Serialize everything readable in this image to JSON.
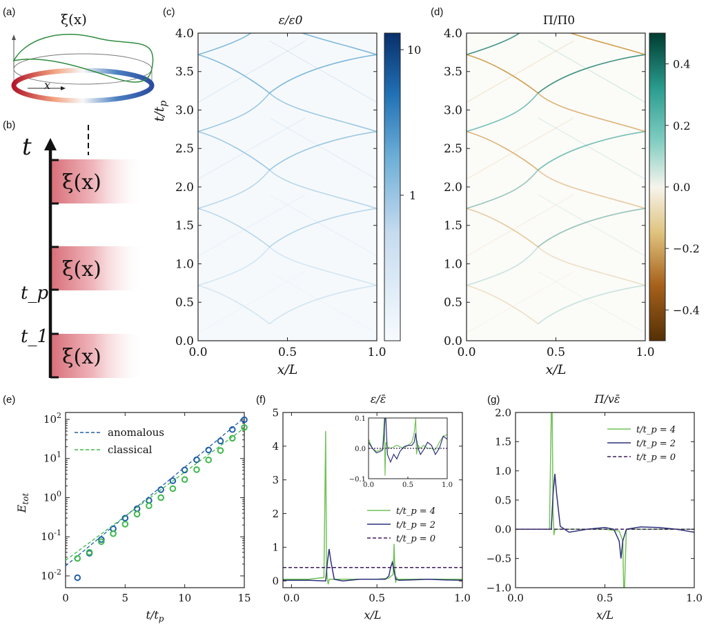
{
  "panels": {
    "a": {
      "letter": "(a)",
      "title": "ξ(x)",
      "axis_label": "x"
    },
    "b": {
      "letter": "(b)",
      "axis_label": "t",
      "labels": [
        "ξ(x)",
        "ξ(x)",
        "ξ(x)"
      ],
      "tick_labels": [
        "t_p",
        "t_1"
      ]
    },
    "c": {
      "letter": "(c)"
    },
    "d": {
      "letter": "(d)"
    },
    "e": {
      "letter": "(e)"
    },
    "f": {
      "letter": "(f)"
    },
    "g": {
      "letter": "(g)"
    }
  },
  "chart_data": [
    {
      "id": "c",
      "type": "heatmap",
      "title": "ε/ε0",
      "xlabel": "x/L",
      "ylabel": "t/t_p",
      "xlim": [
        0,
        1
      ],
      "ylim": [
        0,
        4
      ],
      "xticks": [
        "0.0",
        "0.5",
        "1.0"
      ],
      "yticks": [
        "0.0",
        "0.5",
        "1.0",
        "1.5",
        "2.0",
        "2.5",
        "3.0",
        "3.5",
        "4.0"
      ],
      "colorbar": {
        "ticks": [
          "1",
          "10"
        ],
        "scale": "log",
        "colors": [
          "#f7fbff",
          "#08306b"
        ]
      }
    },
    {
      "id": "d",
      "type": "heatmap",
      "title": "Π/Π0",
      "xlabel": "x/L",
      "xlim": [
        0,
        1
      ],
      "ylim": [
        0,
        4
      ],
      "xticks": [
        "0.0",
        "0.5",
        "1.0"
      ],
      "yticks": [
        "0.0",
        "0.5",
        "1.0",
        "1.5",
        "2.0",
        "2.5",
        "3.0",
        "3.5",
        "4.0"
      ],
      "colorbar": {
        "ticks": [
          "0.4",
          "0.2",
          "0.0",
          "−0.2",
          "−0.4"
        ],
        "range": [
          -0.5,
          0.5
        ],
        "colors": [
          "#543005",
          "#f5f5f5",
          "#003c30"
        ]
      }
    },
    {
      "id": "e",
      "type": "scatter",
      "xlabel": "t/t_p",
      "ylabel": "E_tot",
      "xlim": [
        0,
        15
      ],
      "ylim": [
        0.005,
        150
      ],
      "yscale": "log",
      "xticks": [
        "0",
        "5",
        "10",
        "15"
      ],
      "yticks": [
        "10^-2",
        "10^-1",
        "10^0",
        "10^1",
        "10^2"
      ],
      "legend": [
        "anomalous",
        "classical"
      ],
      "legend_position": "top-left",
      "series": [
        {
          "name": "anomalous",
          "color": "#1f5fa8",
          "x": [
            1,
            2,
            3,
            4,
            5,
            6,
            7,
            8,
            9,
            10,
            11,
            12,
            13,
            14,
            15
          ],
          "y": [
            0.009,
            0.038,
            0.085,
            0.16,
            0.3,
            0.52,
            0.85,
            1.6,
            2.7,
            5.1,
            9.3,
            16.5,
            28,
            55,
            98
          ],
          "fit": {
            "x": [
              0,
              15
            ],
            "y": [
              0.018,
              110
            ]
          }
        },
        {
          "name": "classical",
          "color": "#3cb84a",
          "x": [
            1,
            2,
            3,
            4,
            5,
            6,
            7,
            8,
            9,
            10,
            11,
            12,
            13,
            14,
            15
          ],
          "y": [
            0.028,
            0.04,
            0.075,
            0.12,
            0.21,
            0.38,
            0.62,
            1.0,
            1.7,
            2.9,
            5.2,
            9.2,
            16,
            33,
            62
          ],
          "fit": {
            "x": [
              0,
              15
            ],
            "y": [
              0.025,
              60
            ]
          }
        }
      ]
    },
    {
      "id": "f",
      "type": "line",
      "title": "ε/ε̄",
      "xlabel": "x/L",
      "xlim": [
        -0.05,
        1
      ],
      "ylim": [
        -0.2,
        5
      ],
      "xticks": [
        "0.0",
        "0.5",
        "1.0"
      ],
      "yticks": [
        "0",
        "1",
        "2",
        "3",
        "4",
        "5"
      ],
      "legend": [
        "t/t_p = 4",
        "t/t_p = 2",
        "t/t_p = 0"
      ],
      "legend_position": "lower-right",
      "series": [
        {
          "name": "t/t_p = 4",
          "color": "#72c258",
          "x": [
            -0.05,
            0.1,
            0.19,
            0.2,
            0.205,
            0.21,
            0.215,
            0.22,
            0.23,
            0.3,
            0.5,
            0.57,
            0.595,
            0.6,
            0.605,
            0.61,
            0.615,
            0.62,
            0.7,
            0.9,
            1.0
          ],
          "y": [
            0.05,
            0.05,
            0.1,
            4.45,
            0.4,
            0.05,
            -0.1,
            0.05,
            0.05,
            0.05,
            0.05,
            0.08,
            0.2,
            1.1,
            0.3,
            -0.05,
            0.1,
            0.05,
            0.05,
            0.05,
            0.05
          ]
        },
        {
          "name": "t/t_p = 2",
          "color": "#2b2f7a",
          "x": [
            -0.05,
            0.1,
            0.2,
            0.21,
            0.22,
            0.23,
            0.25,
            0.3,
            0.4,
            0.5,
            0.55,
            0.57,
            0.58,
            0.59,
            0.6,
            0.61,
            0.63,
            0.7,
            0.8,
            0.9,
            1.0
          ],
          "y": [
            0.02,
            0.02,
            0.0,
            0.55,
            0.95,
            0.6,
            0.05,
            0.0,
            0.05,
            0.05,
            0.05,
            0.15,
            0.4,
            0.55,
            0.3,
            0.05,
            0.02,
            0.03,
            0.05,
            0.03,
            0.02
          ]
        },
        {
          "name": "t/t_p = 0",
          "color": "#3b1a5a",
          "dashed": true,
          "x": [
            -0.05,
            1.0
          ],
          "y": [
            0.4,
            0.4
          ]
        }
      ],
      "inset": {
        "xlim": [
          0,
          1
        ],
        "ylim": [
          -0.1,
          0.1
        ],
        "xticks": [
          "0.0",
          "0.5",
          "1.0"
        ],
        "yticks": [
          "−0.1",
          "0.0",
          "0.1"
        ],
        "series": [
          {
            "name": "t/t_p = 4",
            "color": "#72c258",
            "x": [
              0,
              0.05,
              0.1,
              0.15,
              0.18,
              0.2,
              0.21,
              0.22,
              0.24,
              0.28,
              0.32,
              0.36,
              0.4,
              0.45,
              0.5,
              0.55,
              0.58,
              0.6,
              0.61,
              0.63,
              0.66,
              0.7,
              0.75,
              0.8,
              0.85,
              0.9,
              0.95,
              1.0
            ],
            "y": [
              0.03,
              0.0,
              -0.01,
              -0.005,
              0.0,
              0.1,
              -0.09,
              0.02,
              0.005,
              0.0,
              0.005,
              0.01,
              0.005,
              0.0,
              0.01,
              0.02,
              0.05,
              0.1,
              -0.02,
              0.01,
              0.0,
              0.01,
              0.0,
              0.0,
              -0.005,
              0.02,
              0.04,
              0.045
            ]
          },
          {
            "name": "t/t_p = 2",
            "color": "#2b2f7a",
            "x": [
              0,
              0.05,
              0.1,
              0.15,
              0.18,
              0.2,
              0.21,
              0.22,
              0.24,
              0.28,
              0.32,
              0.36,
              0.4,
              0.45,
              0.5,
              0.55,
              0.58,
              0.6,
              0.61,
              0.63,
              0.66,
              0.7,
              0.75,
              0.8,
              0.85,
              0.9,
              0.95,
              1.0
            ],
            "y": [
              0.02,
              0.0,
              -0.015,
              -0.01,
              -0.005,
              0.05,
              0.1,
              0.1,
              -0.02,
              -0.045,
              -0.02,
              -0.035,
              -0.01,
              0.005,
              0.01,
              0.01,
              0.02,
              0.05,
              0.03,
              0.0,
              -0.02,
              -0.005,
              0.02,
              0.01,
              -0.02,
              0.0,
              0.04,
              0.03
            ]
          },
          {
            "name": "t/t_p = 0",
            "color": "#3b1a5a",
            "dashed": true,
            "x": [
              0,
              1
            ],
            "y": [
              0,
              0
            ]
          }
        ]
      }
    },
    {
      "id": "g",
      "type": "line",
      "title": "Π/vε̄",
      "xlabel": "x/L",
      "xlim": [
        0,
        1
      ],
      "ylim": [
        -1,
        2
      ],
      "xticks": [
        "0.0",
        "0.5",
        "1.0"
      ],
      "yticks": [
        "−1.0",
        "−0.5",
        "0.0",
        "0.5",
        "1.0",
        "1.5",
        "2.0"
      ],
      "legend": [
        "t/t_p = 4",
        "t/t_p = 2",
        "t/t_p = 0"
      ],
      "legend_position": "top-right",
      "series": [
        {
          "name": "t/t_p = 4",
          "color": "#72c258",
          "x": [
            0,
            0.1,
            0.19,
            0.2,
            0.205,
            0.21,
            0.215,
            0.22,
            0.3,
            0.5,
            0.58,
            0.6,
            0.605,
            0.61,
            0.62,
            0.7,
            0.9,
            1.0
          ],
          "y": [
            0.0,
            0.0,
            0.0,
            2.0,
            2.0,
            0.3,
            -0.1,
            0.0,
            0.0,
            0.0,
            -0.03,
            -0.2,
            -1.0,
            -1.0,
            0.0,
            0.0,
            0.0,
            0.0
          ]
        },
        {
          "name": "t/t_p = 2",
          "color": "#2b2f7a",
          "x": [
            0,
            0.1,
            0.2,
            0.21,
            0.22,
            0.23,
            0.25,
            0.3,
            0.4,
            0.5,
            0.55,
            0.58,
            0.59,
            0.6,
            0.62,
            0.7,
            0.8,
            0.9,
            1.0
          ],
          "y": [
            0.0,
            0.0,
            0.0,
            0.6,
            0.95,
            0.6,
            0.05,
            -0.05,
            0.0,
            0.03,
            0.0,
            -0.2,
            -0.5,
            -0.2,
            0.0,
            0.04,
            0.03,
            0.0,
            -0.05
          ]
        },
        {
          "name": "t/t_p = 0",
          "color": "#3b1a5a",
          "dashed": true,
          "x": [
            0,
            1
          ],
          "y": [
            0,
            0
          ]
        }
      ]
    }
  ]
}
